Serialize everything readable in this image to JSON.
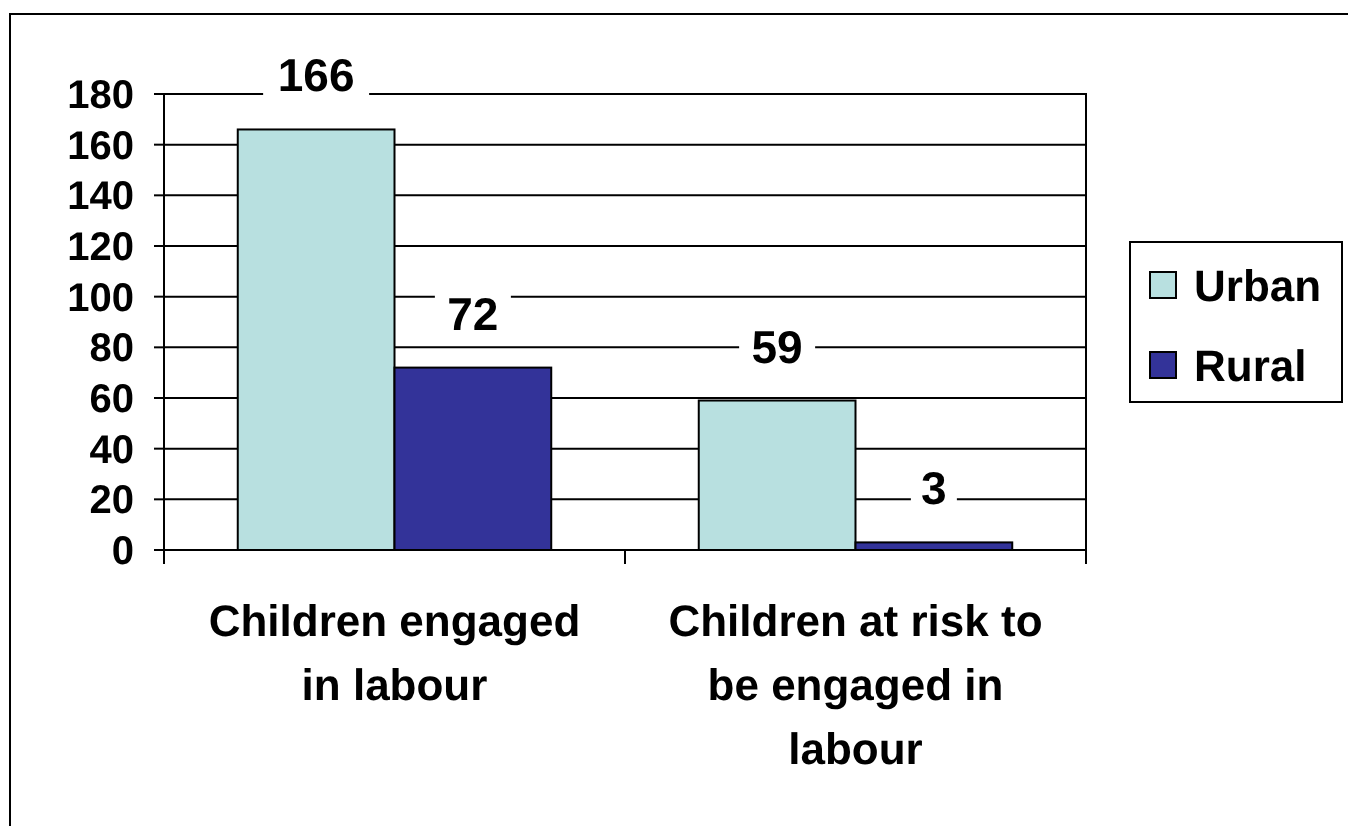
{
  "chart_data": {
    "type": "bar",
    "categories": [
      "Children engaged in labour",
      "Children at risk to be engaged in labour"
    ],
    "series": [
      {
        "name": "Urban",
        "color": "#b8e0e0",
        "values": [
          166,
          59
        ]
      },
      {
        "name": "Rural",
        "color": "#333399",
        "values": [
          72,
          3
        ]
      }
    ],
    "ylim": [
      0,
      180
    ],
    "yticks": [
      0,
      20,
      40,
      60,
      80,
      100,
      120,
      140,
      160,
      180
    ],
    "grid": "y",
    "legend": "right",
    "data_labels": true
  }
}
